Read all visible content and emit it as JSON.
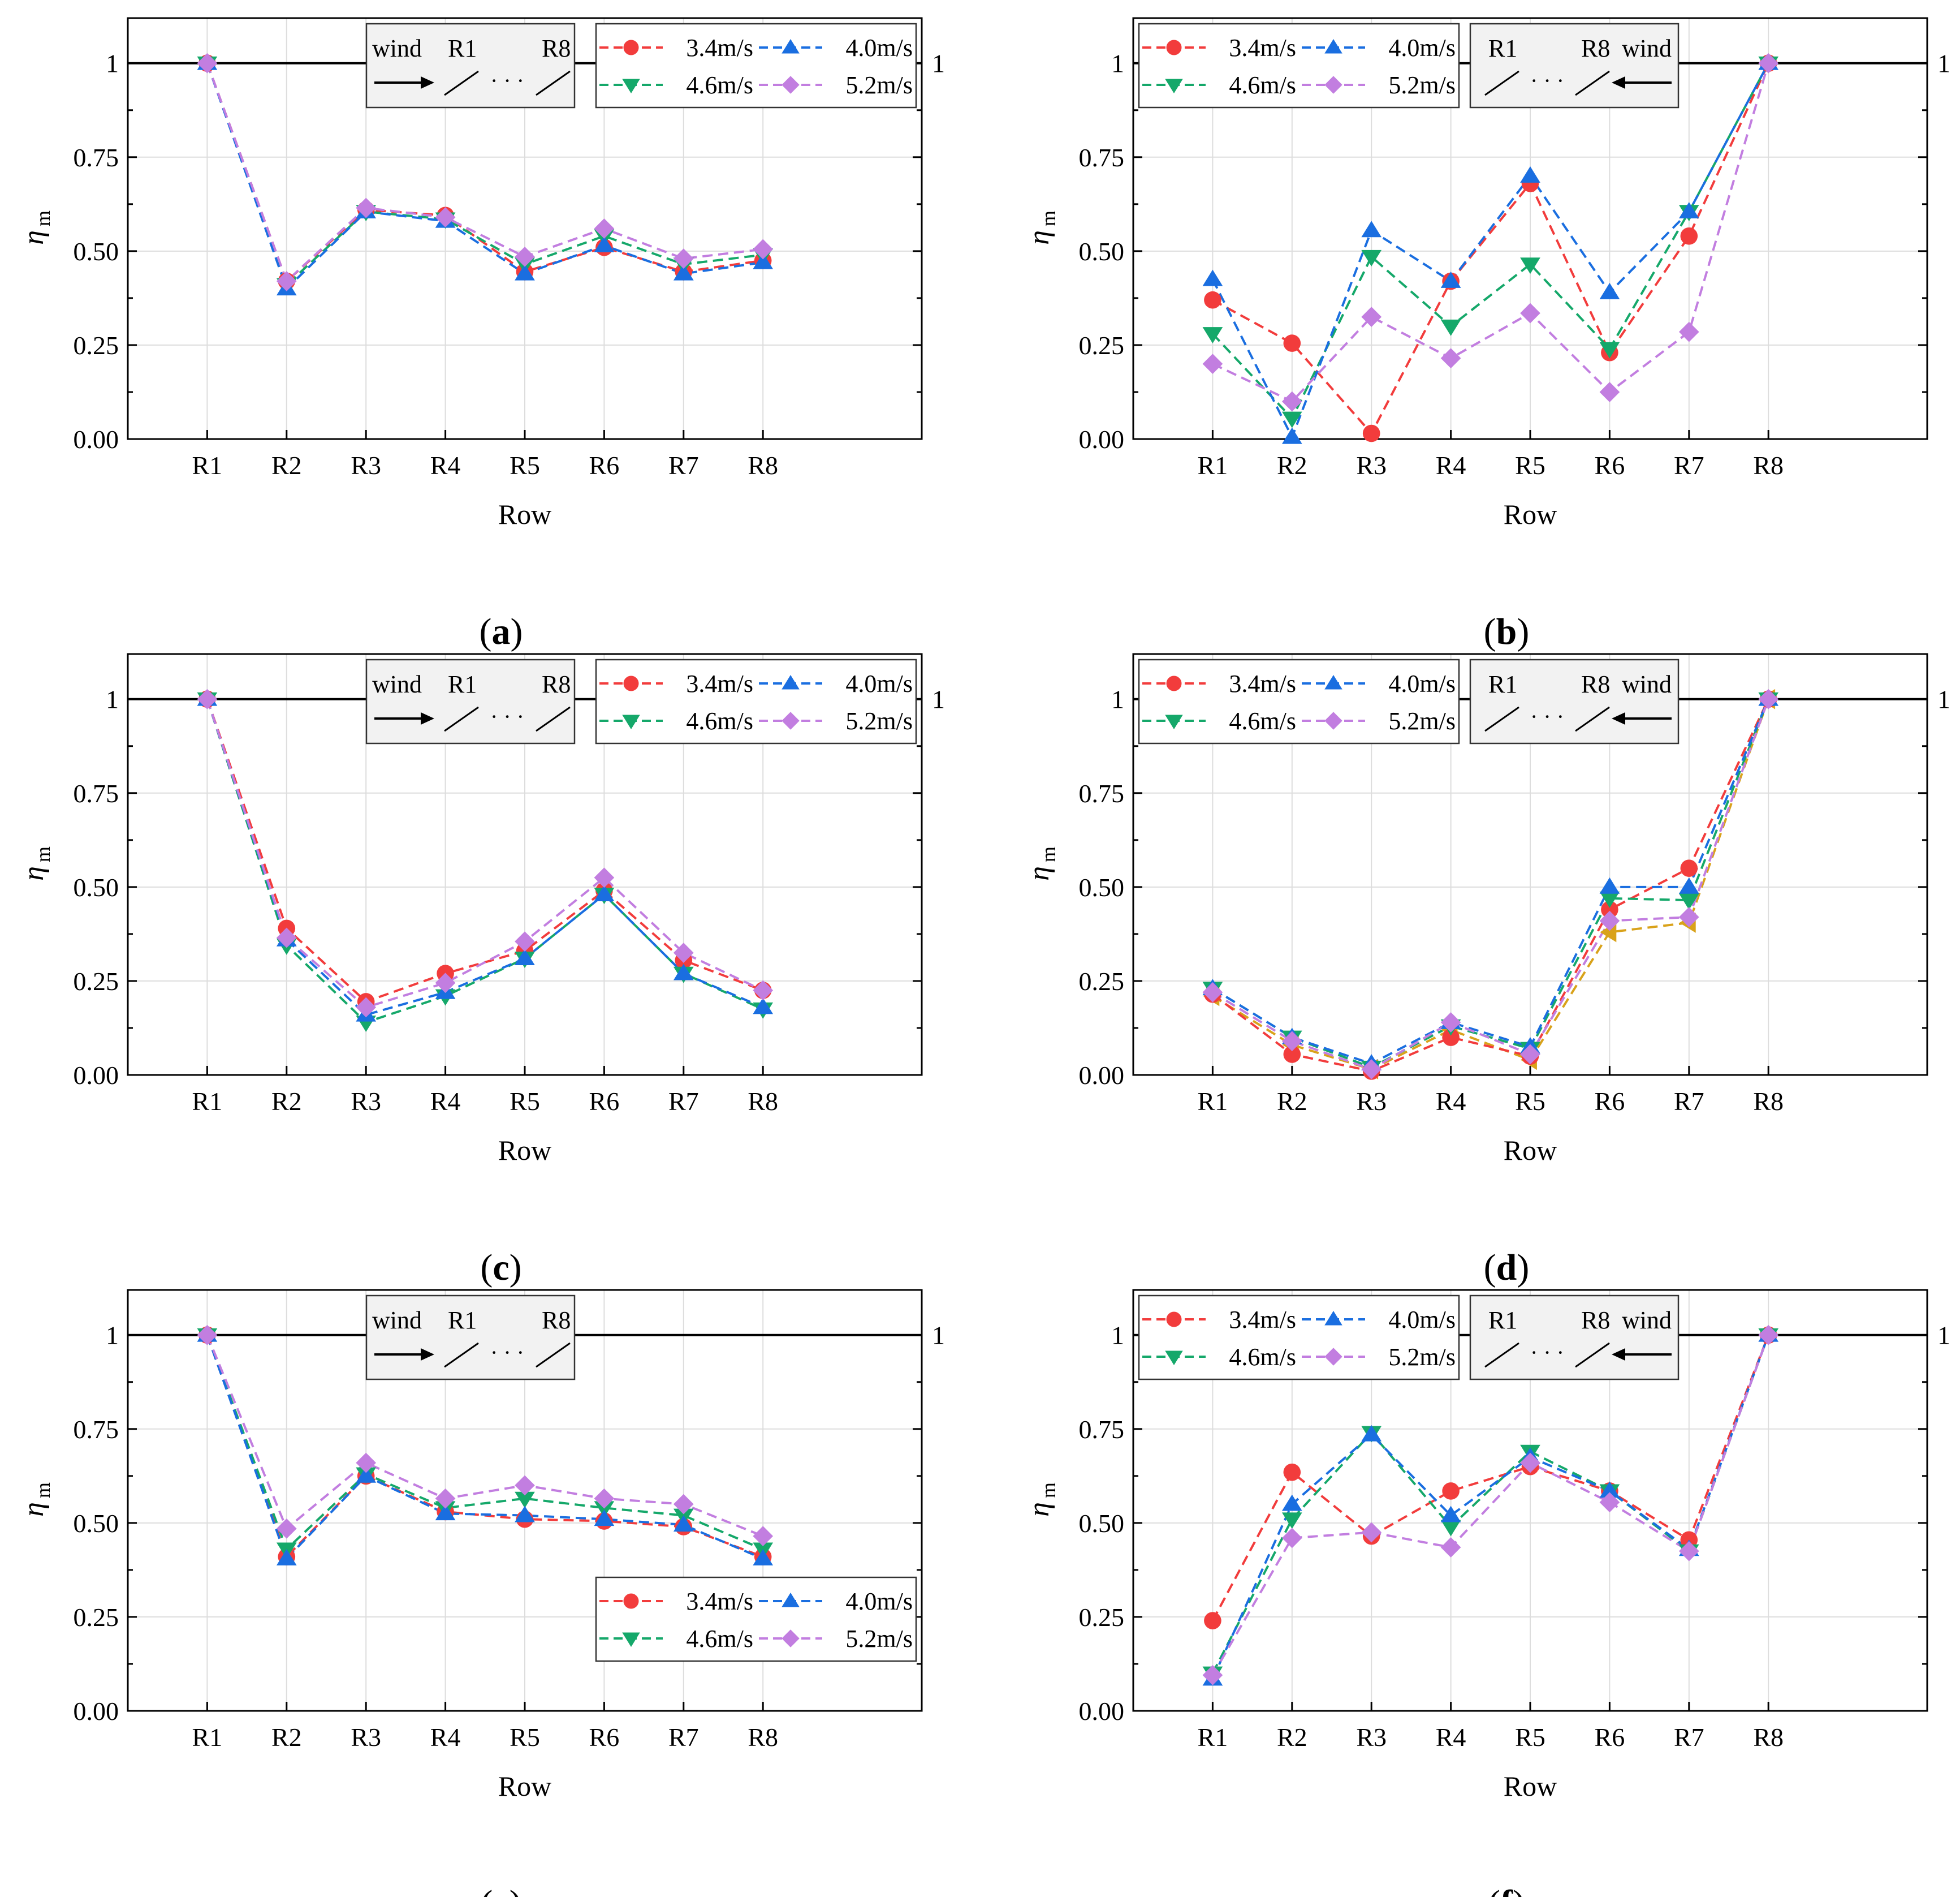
{
  "figure": {
    "caption_style": "bold-in-parentheses"
  },
  "style": {
    "colors": {
      "3.4m/s": "#f23c3c",
      "4.0m/s": "#1a6ee0",
      "4.6m/s": "#15a86a",
      "5.2m/s": "#c27ee0",
      "extra": "#d9a21a",
      "reference_line": "#000000",
      "grid": "#dddddd",
      "legend_fill": "#f2f2f2"
    },
    "markers": {
      "3.4m/s": "circle-icon",
      "4.0m/s": "triangle-up-icon",
      "4.6m/s": "triangle-down-icon",
      "5.2m/s": "diamond-icon",
      "extra": "triangle-left-icon"
    }
  },
  "chart_data": [
    {
      "panel": "a",
      "caption": "a",
      "type": "line",
      "categories": [
        "R1",
        "R2",
        "R3",
        "R4",
        "R5",
        "R6",
        "R7",
        "R8"
      ],
      "xlabel": "Row",
      "ylabel": "η",
      "ylabel_sub": "m",
      "ylim": [
        0,
        1.12
      ],
      "yticks": [
        {
          "value": 0,
          "label": "0.00"
        },
        {
          "value": 0.25,
          "label": "0.25"
        },
        {
          "value": 0.5,
          "label": "0.50"
        },
        {
          "value": 0.75,
          "label": "0.75"
        },
        {
          "value": 1,
          "label": "1"
        }
      ],
      "reference_line": {
        "value": 1,
        "right_label": "1"
      },
      "wind_direction": "left-to-right",
      "inset": {
        "wind": "wind",
        "first": "R1",
        "last": "R8",
        "dots": "· · ·"
      },
      "legend_position": "top-right",
      "series": [
        {
          "name": "3.4m/s",
          "values": [
            1,
            0.42,
            0.61,
            0.595,
            0.445,
            0.51,
            0.445,
            0.475
          ]
        },
        {
          "name": "4.0m/s",
          "values": [
            1,
            0.4,
            0.605,
            0.58,
            0.44,
            0.515,
            0.44,
            0.47
          ]
        },
        {
          "name": "4.6m/s",
          "values": [
            1,
            0.41,
            0.605,
            0.585,
            0.465,
            0.54,
            0.465,
            0.49
          ]
        },
        {
          "name": "5.2m/s",
          "values": [
            1,
            0.42,
            0.615,
            0.59,
            0.485,
            0.56,
            0.48,
            0.505
          ]
        }
      ]
    },
    {
      "panel": "b",
      "caption": "b",
      "type": "line",
      "categories": [
        "R1",
        "R2",
        "R3",
        "R4",
        "R5",
        "R6",
        "R7",
        "R8"
      ],
      "xlabel": "Row",
      "ylabel": "η",
      "ylabel_sub": "m",
      "ylim": [
        0,
        1.12
      ],
      "yticks": [
        {
          "value": 0,
          "label": "0.00"
        },
        {
          "value": 0.25,
          "label": "0.25"
        },
        {
          "value": 0.5,
          "label": "0.50"
        },
        {
          "value": 0.75,
          "label": "0.75"
        },
        {
          "value": 1,
          "label": "1"
        }
      ],
      "reference_line": {
        "value": 1,
        "right_label": "1"
      },
      "wind_direction": "right-to-left",
      "inset": {
        "wind": "wind",
        "first": "R1",
        "last": "R8",
        "dots": "· · ·"
      },
      "legend_position": "top-left",
      "series": [
        {
          "name": "3.4m/s",
          "values": [
            0.37,
            0.255,
            0.015,
            0.42,
            0.68,
            0.23,
            0.54,
            1
          ]
        },
        {
          "name": "4.0m/s",
          "values": [
            0.425,
            0.005,
            0.555,
            0.42,
            0.7,
            0.39,
            0.605,
            1
          ]
        },
        {
          "name": "4.6m/s",
          "values": [
            0.28,
            0.055,
            0.485,
            0.3,
            0.465,
            0.24,
            0.605,
            1
          ]
        },
        {
          "name": "5.2m/s",
          "values": [
            0.2,
            0.1,
            0.325,
            0.215,
            0.335,
            0.125,
            0.285,
            1
          ]
        }
      ]
    },
    {
      "panel": "c",
      "caption": "c",
      "type": "line",
      "categories": [
        "R1",
        "R2",
        "R3",
        "R4",
        "R5",
        "R6",
        "R7",
        "R8"
      ],
      "xlabel": "Row",
      "ylabel": "η",
      "ylabel_sub": "m",
      "ylim": [
        0,
        1.12
      ],
      "yticks": [
        {
          "value": 0,
          "label": "0.00"
        },
        {
          "value": 0.25,
          "label": "0.25"
        },
        {
          "value": 0.5,
          "label": "0.50"
        },
        {
          "value": 0.75,
          "label": "0.75"
        },
        {
          "value": 1,
          "label": "1"
        }
      ],
      "reference_line": {
        "value": 1,
        "right_label": "1"
      },
      "wind_direction": "left-to-right",
      "inset": {
        "wind": "wind",
        "first": "R1",
        "last": "R8",
        "dots": "· · ·"
      },
      "legend_position": "top-right",
      "series": [
        {
          "name": "3.4m/s",
          "values": [
            1,
            0.39,
            0.195,
            0.27,
            0.33,
            0.49,
            0.305,
            0.225
          ]
        },
        {
          "name": "4.0m/s",
          "values": [
            1,
            0.36,
            0.16,
            0.22,
            0.31,
            0.48,
            0.27,
            0.18
          ]
        },
        {
          "name": "4.6m/s",
          "values": [
            1,
            0.345,
            0.14,
            0.21,
            0.31,
            0.48,
            0.27,
            0.175
          ]
        },
        {
          "name": "5.2m/s",
          "values": [
            1,
            0.365,
            0.18,
            0.245,
            0.355,
            0.525,
            0.325,
            0.225
          ]
        }
      ]
    },
    {
      "panel": "d",
      "caption": "d",
      "type": "line",
      "categories": [
        "R1",
        "R2",
        "R3",
        "R4",
        "R5",
        "R6",
        "R7",
        "R8"
      ],
      "xlabel": "Row",
      "ylabel": "η",
      "ylabel_sub": "m",
      "ylim": [
        0,
        1.12
      ],
      "yticks": [
        {
          "value": 0,
          "label": "0.00"
        },
        {
          "value": 0.25,
          "label": "0.25"
        },
        {
          "value": 0.5,
          "label": "0.50"
        },
        {
          "value": 0.75,
          "label": "0.75"
        },
        {
          "value": 1,
          "label": "1"
        }
      ],
      "reference_line": {
        "value": 1,
        "right_label": "1"
      },
      "wind_direction": "right-to-left",
      "inset": {
        "wind": "wind",
        "first": "R1",
        "last": "R8",
        "dots": "· · ·"
      },
      "legend_position": "top-left",
      "series": [
        {
          "name": "3.4m/s",
          "values": [
            0.215,
            0.055,
            0.01,
            0.1,
            0.05,
            0.44,
            0.55,
            1
          ]
        },
        {
          "name": "4.0m/s",
          "values": [
            0.23,
            0.1,
            0.03,
            0.14,
            0.075,
            0.5,
            0.5,
            1
          ]
        },
        {
          "name": "4.6m/s",
          "values": [
            0.23,
            0.1,
            0.02,
            0.13,
            0.07,
            0.47,
            0.465,
            1
          ]
        },
        {
          "name": "5.2m/s",
          "values": [
            0.22,
            0.09,
            0.015,
            0.14,
            0.055,
            0.41,
            0.42,
            1
          ]
        },
        {
          "name": "extra",
          "values": [
            0.21,
            0.08,
            0.015,
            0.12,
            0.04,
            0.38,
            0.405,
            1
          ],
          "in_legend": false
        }
      ]
    },
    {
      "panel": "e",
      "caption": "e",
      "type": "line",
      "categories": [
        "R1",
        "R2",
        "R3",
        "R4",
        "R5",
        "R6",
        "R7",
        "R8"
      ],
      "xlabel": "Row",
      "ylabel": "η",
      "ylabel_sub": "m",
      "ylim": [
        0,
        1.12
      ],
      "yticks": [
        {
          "value": 0,
          "label": "0.00"
        },
        {
          "value": 0.25,
          "label": "0.25"
        },
        {
          "value": 0.5,
          "label": "0.50"
        },
        {
          "value": 0.75,
          "label": "0.75"
        },
        {
          "value": 1,
          "label": "1"
        }
      ],
      "reference_line": {
        "value": 1,
        "right_label": "1"
      },
      "wind_direction": "left-to-right",
      "inset": {
        "wind": "wind",
        "first": "R1",
        "last": "R8",
        "dots": "· · ·"
      },
      "legend_position": "bottom-right",
      "series": [
        {
          "name": "3.4m/s",
          "values": [
            1,
            0.41,
            0.625,
            0.53,
            0.51,
            0.505,
            0.49,
            0.41
          ]
        },
        {
          "name": "4.0m/s",
          "values": [
            1,
            0.405,
            0.625,
            0.525,
            0.52,
            0.51,
            0.495,
            0.405
          ]
        },
        {
          "name": "4.6m/s",
          "values": [
            1,
            0.43,
            0.63,
            0.54,
            0.565,
            0.54,
            0.52,
            0.43
          ]
        },
        {
          "name": "5.2m/s",
          "values": [
            1,
            0.485,
            0.66,
            0.565,
            0.6,
            0.565,
            0.55,
            0.465
          ]
        }
      ]
    },
    {
      "panel": "f",
      "caption": "f",
      "type": "line",
      "categories": [
        "R1",
        "R2",
        "R3",
        "R4",
        "R5",
        "R6",
        "R7",
        "R8"
      ],
      "xlabel": "Row",
      "ylabel": "η",
      "ylabel_sub": "m",
      "ylim": [
        0,
        1.12
      ],
      "yticks": [
        {
          "value": 0,
          "label": "0.00"
        },
        {
          "value": 0.25,
          "label": "0.25"
        },
        {
          "value": 0.5,
          "label": "0.50"
        },
        {
          "value": 0.75,
          "label": "0.75"
        },
        {
          "value": 1,
          "label": "1"
        }
      ],
      "reference_line": {
        "value": 1,
        "right_label": "1"
      },
      "wind_direction": "right-to-left",
      "inset": {
        "wind": "wind",
        "first": "R1",
        "last": "R8",
        "dots": "· · ·"
      },
      "legend_position": "top-left",
      "series": [
        {
          "name": "3.4m/s",
          "values": [
            0.24,
            0.635,
            0.465,
            0.585,
            0.65,
            0.585,
            0.455,
            1
          ]
        },
        {
          "name": "4.0m/s",
          "values": [
            0.085,
            0.55,
            0.735,
            0.52,
            0.675,
            0.585,
            0.43,
            1
          ]
        },
        {
          "name": "4.6m/s",
          "values": [
            0.1,
            0.51,
            0.74,
            0.49,
            0.69,
            0.585,
            0.425,
            1
          ]
        },
        {
          "name": "5.2m/s",
          "values": [
            0.095,
            0.46,
            0.475,
            0.435,
            0.66,
            0.555,
            0.425,
            1
          ]
        }
      ]
    }
  ]
}
